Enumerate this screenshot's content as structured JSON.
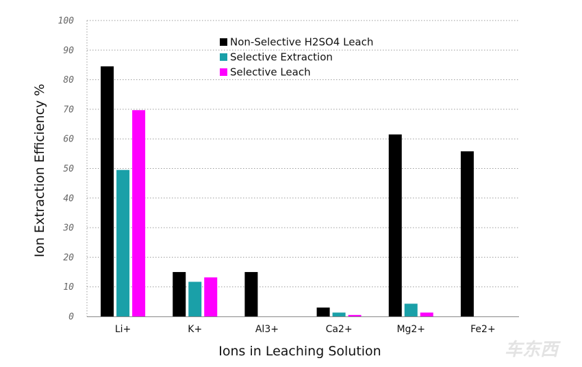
{
  "chart_data": {
    "type": "bar",
    "title": "",
    "xlabel": "Ions in Leaching Solution",
    "ylabel": "Ion Extraction Efficiency %",
    "ylim": [
      0,
      100
    ],
    "yticks": [
      "0",
      "10",
      "20",
      "30",
      "40",
      "50",
      "60",
      "70",
      "80",
      "90",
      "100"
    ],
    "grid": true,
    "legend_position": "top-center",
    "categories": [
      "Li+",
      "K+",
      "Al3+",
      "Ca2+",
      "Mg2+",
      "Fe2+"
    ],
    "series": [
      {
        "name": "Non-Selective H2SO4 Leach",
        "color": "#000000",
        "values": [
          84.5,
          15,
          15,
          3,
          61.5,
          55.8
        ]
      },
      {
        "name": "Selective Extraction",
        "color": "#1aa0a8",
        "values": [
          49.5,
          11.7,
          0,
          1.3,
          4.3,
          0
        ]
      },
      {
        "name": "Selective Leach",
        "color": "#ff00ff",
        "values": [
          69.7,
          13.2,
          0,
          0.5,
          1.3,
          0
        ]
      }
    ]
  },
  "watermark": "车东西"
}
